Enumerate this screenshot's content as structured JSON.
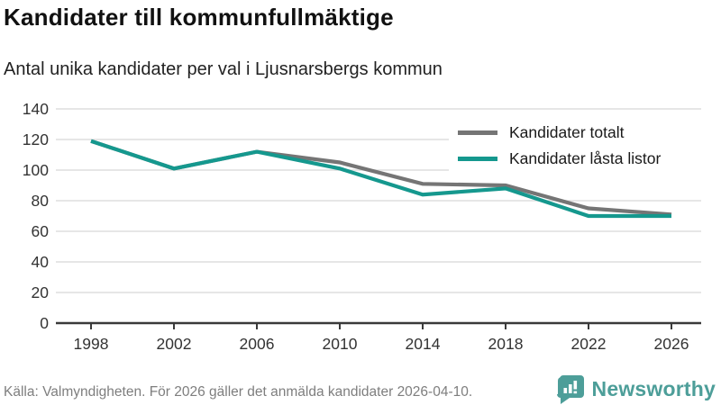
{
  "title": "Kandidater till kommunfullmäktige",
  "subtitle": "Antal unika kandidater per val i Ljusnarsbergs kommun",
  "footer": {
    "source": "Källa: Valmyndigheten. För 2026 gäller det anmälda kandidater 2026-04-10."
  },
  "branding": {
    "name": "Newsworthy",
    "icon": "bar-chart-speech-bubble-icon",
    "color": "#4d9e99"
  },
  "colors": {
    "series_total": "#757575",
    "series_locked": "#15988e",
    "axis": "#3a3a3a",
    "grid": "#dedede",
    "tick_text": "#333333"
  },
  "chart_data": {
    "type": "line",
    "x": [
      1998,
      2002,
      2006,
      2010,
      2014,
      2018,
      2022,
      2026
    ],
    "series": [
      {
        "name": "Kandidater totalt",
        "color": "#757575",
        "values": [
          119,
          101,
          112,
          105,
          91,
          90,
          75,
          71
        ]
      },
      {
        "name": "Kandidater låsta listor",
        "color": "#15988e",
        "values": [
          119,
          101,
          112,
          101,
          84,
          88,
          70,
          70
        ]
      }
    ],
    "title": "Kandidater till kommunfullmäktige",
    "xlabel": "",
    "ylabel": "",
    "ylim": [
      0,
      140
    ],
    "yticks": [
      0,
      20,
      40,
      60,
      80,
      100,
      120,
      140
    ],
    "grid": "horizontal",
    "legend_position": "top-right"
  }
}
